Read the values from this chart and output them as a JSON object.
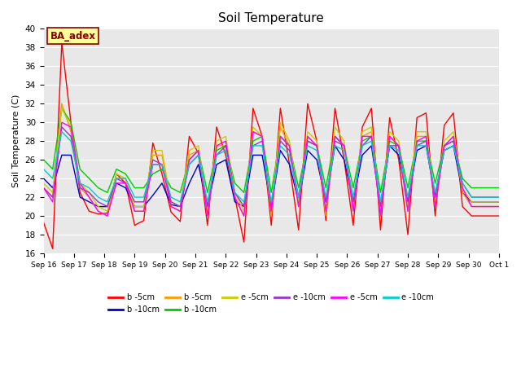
{
  "title": "Soil Temperature",
  "ylabel": "Soil Temperature (C)",
  "xlabel": "",
  "ylim": [
    16,
    40
  ],
  "xlim": [
    0,
    15
  ],
  "background_color": "#e8e8e8",
  "annotation_text": "BA_adex",
  "annotation_color": "#8b0000",
  "annotation_bg": "#ffff99",
  "annotation_border": "#8b0000",
  "xtick_labels": [
    "Sep 16",
    "Sep 17",
    "Sep 18",
    "Sep 19",
    "Sep 20",
    "Sep 21",
    "Sep 22",
    "Sep 23",
    "Sep 24",
    "Sep 25",
    "Sep 26",
    "Sep 27",
    "Sep 28",
    "Sep 29",
    "Sep 30",
    "Oct 1"
  ],
  "legend_entries": [
    {
      "label": "b -5cm",
      "color": "#ff0000"
    },
    {
      "label": "b -10cm",
      "color": "#0000cc"
    },
    {
      "label": "b -5cm",
      "color": "#ff9900"
    },
    {
      "label": "b -10cm",
      "color": "#00cc00"
    },
    {
      "label": "e -5cm",
      "color": "#cccc00"
    },
    {
      "label": "e -10cm",
      "color": "#9933cc"
    },
    {
      "label": "e -5cm",
      "color": "#ff00ff"
    },
    {
      "label": "e -10cm",
      "color": "#00cccc"
    }
  ],
  "series_colors": {
    "b_5cm": "#ff0000",
    "b_10cm": "#0000cc",
    "b2_5cm": "#ff9900",
    "b2_10cm": "#00cc00",
    "e_5cm": "#cccc00",
    "e_10cm": "#9933cc",
    "e2_5cm": "#ff00ff",
    "e2_10cm": "#00cccc"
  },
  "series": {
    "b_5cm": [
      19.3,
      16.5,
      38.5,
      30.0,
      22.5,
      20.5,
      20.2,
      20.3,
      24.5,
      23.5,
      19.0,
      19.5,
      27.8,
      24.5,
      20.4,
      19.4,
      28.5,
      26.7,
      19.0,
      29.5,
      26.5,
      22.0,
      17.2,
      31.5,
      28.5,
      19.0,
      31.5,
      25.5,
      18.5,
      32.0,
      28.0,
      19.5,
      31.5,
      26.0,
      19.0,
      29.5,
      31.5,
      18.5,
      30.5,
      26.0,
      18.0,
      30.5,
      31.0,
      20.0,
      29.7,
      31.0,
      21.0,
      20.0,
      20.0,
      20.0,
      20.0
    ],
    "b_10cm": [
      24.0,
      23.0,
      26.5,
      26.5,
      22.0,
      21.5,
      21.0,
      21.0,
      23.5,
      23.0,
      21.0,
      21.0,
      22.2,
      23.5,
      21.2,
      21.0,
      23.5,
      25.5,
      21.0,
      25.5,
      26.0,
      21.5,
      21.0,
      26.5,
      26.5,
      21.0,
      27.0,
      25.5,
      21.5,
      27.0,
      26.0,
      21.5,
      27.5,
      26.0,
      21.5,
      26.5,
      27.5,
      21.0,
      27.5,
      26.5,
      21.5,
      27.0,
      27.5,
      22.0,
      27.0,
      27.5,
      22.5,
      21.5,
      21.5,
      21.5,
      21.5
    ],
    "b2_5cm": [
      23.0,
      22.0,
      32.0,
      29.0,
      23.0,
      22.0,
      20.5,
      20.0,
      24.0,
      24.0,
      20.5,
      20.5,
      26.5,
      26.5,
      21.0,
      20.5,
      26.5,
      27.0,
      20.0,
      27.5,
      27.5,
      22.0,
      20.0,
      29.0,
      28.5,
      20.0,
      29.5,
      27.5,
      21.0,
      28.5,
      27.5,
      20.0,
      28.5,
      27.5,
      20.5,
      28.5,
      29.0,
      20.0,
      28.5,
      27.5,
      20.5,
      28.5,
      28.5,
      21.0,
      27.5,
      28.5,
      22.5,
      21.0,
      21.0,
      21.0,
      21.0
    ],
    "b2_10cm": [
      26.0,
      25.0,
      31.5,
      30.0,
      25.0,
      24.0,
      23.0,
      22.5,
      25.0,
      24.5,
      23.0,
      23.0,
      24.5,
      25.0,
      23.0,
      22.5,
      26.0,
      27.0,
      22.5,
      27.0,
      27.5,
      23.5,
      22.5,
      28.0,
      28.5,
      22.5,
      28.5,
      27.5,
      23.0,
      28.0,
      27.5,
      23.0,
      28.5,
      27.5,
      23.0,
      28.0,
      28.5,
      22.5,
      28.0,
      27.5,
      23.0,
      28.0,
      28.0,
      23.5,
      27.5,
      28.0,
      24.0,
      23.0,
      23.0,
      23.0,
      23.0
    ],
    "e_5cm": [
      23.5,
      22.5,
      31.5,
      29.5,
      23.5,
      22.5,
      21.0,
      20.5,
      24.5,
      24.0,
      21.0,
      21.0,
      27.0,
      27.0,
      21.5,
      21.0,
      27.0,
      27.5,
      20.5,
      28.0,
      28.5,
      22.5,
      20.5,
      29.5,
      28.5,
      20.5,
      30.0,
      28.0,
      21.5,
      29.0,
      28.0,
      20.5,
      29.5,
      28.0,
      21.0,
      29.0,
      29.5,
      20.5,
      29.0,
      28.0,
      21.0,
      29.0,
      29.0,
      21.5,
      28.0,
      29.0,
      23.0,
      21.5,
      21.5,
      21.5,
      21.5
    ],
    "e_10cm": [
      23.0,
      22.0,
      29.5,
      28.5,
      23.0,
      22.5,
      21.5,
      21.0,
      24.0,
      23.5,
      21.5,
      21.5,
      26.0,
      25.5,
      21.5,
      21.0,
      25.5,
      26.5,
      21.0,
      26.5,
      27.5,
      22.5,
      21.0,
      27.5,
      28.0,
      21.0,
      28.0,
      27.0,
      22.0,
      28.0,
      27.5,
      21.5,
      28.0,
      27.5,
      21.5,
      27.5,
      28.5,
      21.0,
      27.5,
      27.5,
      21.5,
      27.5,
      28.0,
      22.0,
      27.5,
      28.0,
      23.5,
      22.0,
      22.0,
      22.0,
      22.0
    ],
    "e2_5cm": [
      23.0,
      21.5,
      30.0,
      29.5,
      23.5,
      22.0,
      20.5,
      20.0,
      23.5,
      23.5,
      20.5,
      20.5,
      25.5,
      25.5,
      21.0,
      20.5,
      26.0,
      27.0,
      20.0,
      27.5,
      28.0,
      22.0,
      20.0,
      29.0,
      28.5,
      20.5,
      28.5,
      27.5,
      21.0,
      28.5,
      27.5,
      20.5,
      28.5,
      27.5,
      20.5,
      28.5,
      28.5,
      20.0,
      28.5,
      27.5,
      20.5,
      28.0,
      28.5,
      21.0,
      27.5,
      28.5,
      23.0,
      21.0,
      21.0,
      21.0,
      21.0
    ],
    "e2_10cm": [
      25.0,
      24.0,
      29.0,
      28.0,
      23.5,
      23.0,
      22.0,
      21.5,
      24.0,
      24.0,
      22.0,
      22.0,
      25.5,
      25.5,
      22.0,
      21.5,
      25.5,
      26.5,
      21.5,
      26.5,
      27.0,
      22.5,
      21.5,
      27.5,
      27.5,
      21.5,
      27.5,
      26.5,
      22.0,
      27.5,
      27.0,
      22.0,
      27.5,
      27.0,
      22.0,
      27.5,
      28.0,
      21.5,
      27.5,
      27.0,
      22.0,
      27.5,
      27.5,
      22.5,
      27.0,
      27.5,
      23.5,
      22.0,
      22.0,
      22.0,
      22.0
    ]
  }
}
